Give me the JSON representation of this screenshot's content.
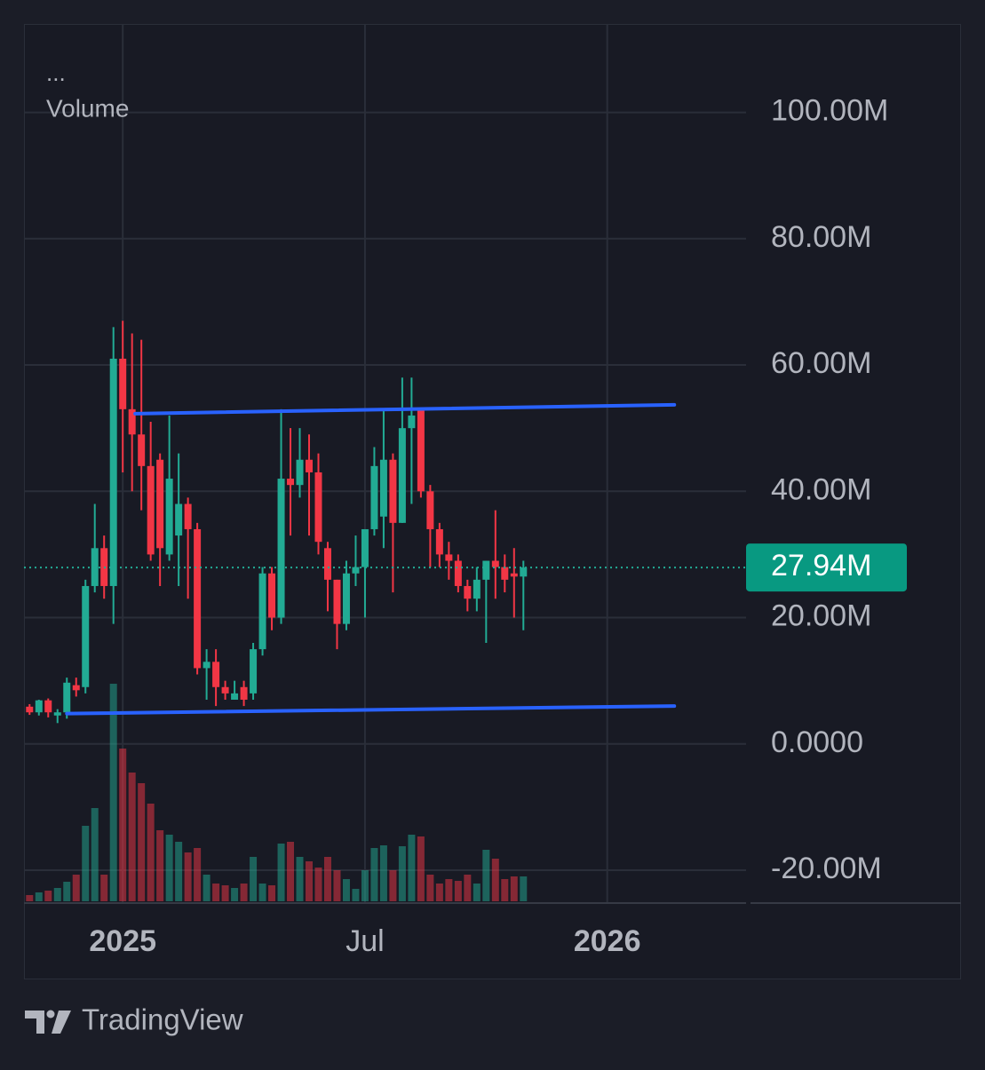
{
  "chart_data": {
    "type": "candlestick",
    "legend": [
      "...",
      "Volume"
    ],
    "ylim": [
      -25.2,
      114
    ],
    "yticks": [
      {
        "value": -20,
        "label": "-20.00M"
      },
      {
        "value": 0,
        "label": "0.0000"
      },
      {
        "value": 20,
        "label": "20.00M"
      },
      {
        "value": 40,
        "label": "40.00M"
      },
      {
        "value": 60,
        "label": "60.00M"
      },
      {
        "value": 80,
        "label": "80.00M"
      },
      {
        "value": 100,
        "label": "100.00M"
      }
    ],
    "xlim": [
      -0.6,
      76.9
    ],
    "xticks": [
      {
        "value": 10,
        "label": "2025"
      },
      {
        "value": 36,
        "label": "Jul"
      },
      {
        "value": 62,
        "label": "2026"
      }
    ],
    "grid": true,
    "up_color": "#22ab94",
    "down_color": "#f23645",
    "ohlc": {
      "open": [
        5.9,
        5.0,
        6.9,
        4.5,
        5.0,
        9.3,
        9.0,
        25,
        31,
        25,
        61,
        53,
        49,
        44,
        45,
        30,
        33,
        38,
        34,
        12,
        13,
        9,
        7,
        9,
        8,
        15,
        27,
        20,
        42,
        41,
        45,
        43,
        31,
        26,
        19,
        27,
        28,
        34,
        36,
        45,
        35,
        50,
        53,
        40,
        34,
        30,
        29,
        25,
        23,
        26,
        29,
        28,
        27,
        26.5
      ],
      "high": [
        6.3,
        7.0,
        7.2,
        5.5,
        10.5,
        10.5,
        26,
        38,
        33,
        66,
        67,
        65,
        64,
        51,
        46,
        52,
        46,
        39,
        35,
        15,
        15,
        10,
        10,
        10,
        16,
        28,
        28,
        53,
        50,
        50,
        49,
        46,
        32,
        26,
        29,
        33,
        34,
        47,
        53,
        46,
        58,
        58,
        53,
        41,
        35,
        32,
        30,
        26,
        28,
        29,
        37,
        30,
        31,
        29
      ],
      "low": [
        4.6,
        4.5,
        4.2,
        3.3,
        4.0,
        7.5,
        8.0,
        24,
        23,
        19,
        43,
        40,
        37,
        29,
        25,
        29,
        25,
        23,
        11,
        7,
        6,
        7,
        7,
        6,
        7,
        14,
        18,
        19,
        33,
        39,
        33,
        30,
        21,
        15,
        18,
        25,
        20,
        33,
        31,
        24,
        35,
        38,
        39,
        28,
        28,
        26,
        24,
        21,
        21,
        16,
        23,
        24,
        20,
        18
      ],
      "close": [
        5.0,
        6.9,
        5.0,
        5.0,
        9.7,
        8.5,
        25,
        31,
        25,
        61,
        53,
        49,
        44,
        30,
        31,
        42,
        38,
        34,
        12,
        13,
        9,
        8,
        8,
        7,
        15,
        27,
        20,
        42,
        41,
        45,
        43,
        32,
        26,
        19,
        27,
        28,
        34,
        44,
        45,
        35,
        50,
        52,
        40,
        34,
        30,
        29,
        25,
        23,
        26,
        29,
        28,
        26,
        26.5,
        27.94
      ]
    },
    "volume": [
      7,
      10,
      12,
      15,
      22,
      30,
      85,
      105,
      30,
      245,
      172,
      145,
      133,
      110,
      80,
      75,
      67,
      55,
      60,
      30,
      20,
      18,
      15,
      20,
      50,
      20,
      18,
      65,
      67,
      50,
      45,
      38,
      50,
      35,
      25,
      14,
      35,
      60,
      63,
      35,
      62,
      75,
      73,
      30,
      20,
      25,
      23,
      30,
      20,
      58,
      48,
      25,
      28,
      28
    ],
    "trendlines": [
      {
        "color": "#2962ff",
        "x": [
          11.33,
          69.2
        ],
        "y": [
          52.3,
          53.7
        ]
      },
      {
        "color": "#2962ff",
        "x": [
          4.0,
          69.2
        ],
        "y": [
          4.8,
          6.0
        ]
      }
    ],
    "last_value": {
      "value": 27.94,
      "label": "27.94M"
    }
  },
  "footer": {
    "brand": "TradingView"
  }
}
